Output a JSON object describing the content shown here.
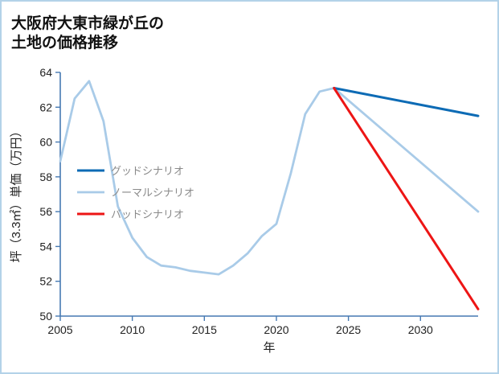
{
  "page": {
    "title_line1": "大阪府大東市緑が丘の",
    "title_line2": "土地の価格推移"
  },
  "colors": {
    "frame_border": "#b3d2e8",
    "axis": "#4679b2"
  },
  "chart_data": {
    "type": "line",
    "title": "大阪府大東市緑が丘の土地の価格推移",
    "xlabel": "年",
    "ylabel": "坪（3.3㎡）単価（万円）",
    "xlim": [
      2005,
      2034
    ],
    "ylim": [
      50,
      64
    ],
    "xticks": [
      2005,
      2010,
      2015,
      2020,
      2025,
      2030
    ],
    "yticks": [
      50,
      52,
      54,
      56,
      58,
      60,
      62,
      64
    ],
    "grid": false,
    "legend_position": "inside-middle-left",
    "draw_order": [
      1,
      0,
      2
    ],
    "series": [
      {
        "name": "グッドシナリオ",
        "color": "#0d6bb5",
        "line_width": 3,
        "x": [
          2024,
          2034
        ],
        "y": [
          63.1,
          61.5
        ]
      },
      {
        "name": "ノーマルシナリオ",
        "color": "#a9cbe8",
        "line_width": 2.8,
        "x": [
          2005,
          2006,
          2007,
          2008,
          2009,
          2010,
          2011,
          2012,
          2013,
          2014,
          2015,
          2016,
          2017,
          2018,
          2019,
          2020,
          2021,
          2022,
          2023,
          2024,
          2034
        ],
        "y": [
          58.9,
          62.5,
          63.5,
          61.2,
          56.3,
          54.5,
          53.4,
          52.9,
          52.8,
          52.6,
          52.5,
          52.4,
          52.9,
          53.6,
          54.6,
          55.3,
          58.2,
          61.6,
          62.9,
          63.1,
          56.0
        ]
      },
      {
        "name": "バッドシナリオ",
        "color": "#ed1515",
        "line_width": 3,
        "x": [
          2024,
          2034
        ],
        "y": [
          63.1,
          50.4
        ]
      }
    ]
  }
}
